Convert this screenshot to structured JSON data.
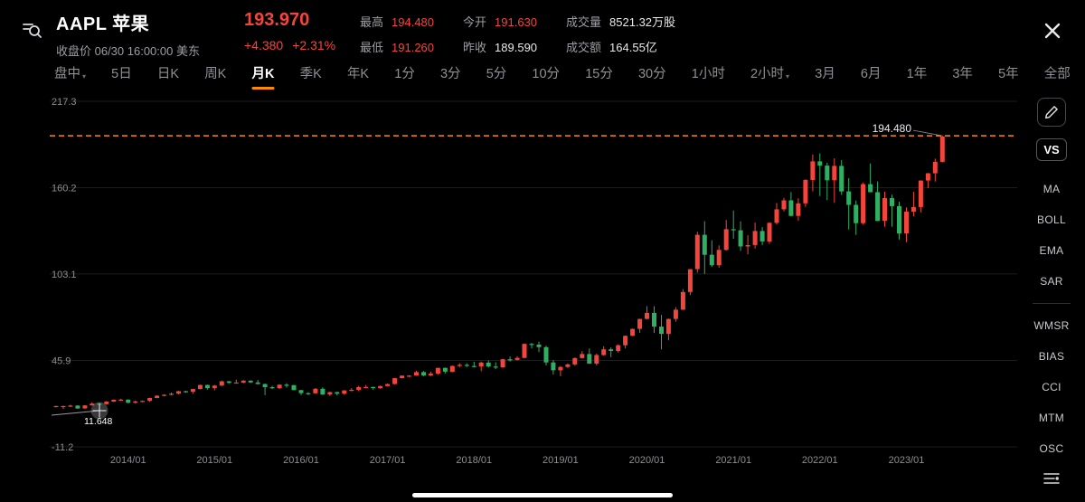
{
  "colors": {
    "red": "#f4453c",
    "green": "#2eaf64",
    "orange": "#ff8a00"
  },
  "header": {
    "symbol_title": "AAPL 苹果",
    "subtitle": "收盘价 06/30 16:00:00 美东",
    "price": "193.970",
    "change_abs": "+4.380",
    "change_pct": "+2.31%",
    "stats": [
      {
        "label": "最高",
        "value": "194.480",
        "c": "red"
      },
      {
        "label": "今开",
        "value": "191.630",
        "c": "red"
      },
      {
        "label": "成交量",
        "value": "8521.32万股",
        "c": "white"
      },
      {
        "label": "最低",
        "value": "191.260",
        "c": "red"
      },
      {
        "label": "昨收",
        "value": "189.590",
        "c": "white"
      },
      {
        "label": "成交额",
        "value": "164.55亿",
        "c": "white"
      }
    ]
  },
  "tabs": [
    {
      "label": "盘中",
      "caret": true
    },
    {
      "label": "5日"
    },
    {
      "label": "日K"
    },
    {
      "label": "周K"
    },
    {
      "label": "月K",
      "active": true
    },
    {
      "label": "季K"
    },
    {
      "label": "年K"
    },
    {
      "label": "1分"
    },
    {
      "label": "3分"
    },
    {
      "label": "5分"
    },
    {
      "label": "10分"
    },
    {
      "label": "15分"
    },
    {
      "label": "30分"
    },
    {
      "label": "1小时"
    },
    {
      "label": "2小时",
      "caret": true
    },
    {
      "label": "3月"
    },
    {
      "label": "6月"
    },
    {
      "label": "1年"
    },
    {
      "label": "3年"
    },
    {
      "label": "5年"
    },
    {
      "label": "全部"
    }
  ],
  "sidebar": {
    "vs_label": "VS",
    "groups": [
      [
        "MA",
        "BOLL",
        "EMA",
        "SAR"
      ],
      [
        "WMSR",
        "BIAS",
        "CCI",
        "MTM",
        "OSC"
      ]
    ]
  },
  "chart_data": {
    "type": "candlestick",
    "title": "AAPL 苹果 月K线",
    "ylim": [
      -11.2,
      217.3
    ],
    "y_ticks": [
      217.3,
      160.2,
      103.1,
      45.9,
      -11.2
    ],
    "start_month": "2013/03",
    "x_labels": [
      {
        "text": "2014/01",
        "i": 10
      },
      {
        "text": "2015/01",
        "i": 22
      },
      {
        "text": "2016/01",
        "i": 34
      },
      {
        "text": "2017/01",
        "i": 46
      },
      {
        "text": "2018/01",
        "i": 58
      },
      {
        "text": "2019/01",
        "i": 70
      },
      {
        "text": "2020/01",
        "i": 82
      },
      {
        "text": "2021/01",
        "i": 94
      },
      {
        "text": "2022/01",
        "i": 106
      },
      {
        "text": "2023/01",
        "i": 118
      }
    ],
    "high_line": {
      "value": 194.48,
      "label": "194.480"
    },
    "trend_anno": {
      "label": "11.648"
    },
    "colors": {
      "up": "#f4453c",
      "down": "#2eaf64",
      "grid": "#1d1d20",
      "axis_text": "#8e8e93",
      "dash": "#ff8a00"
    },
    "candles": [
      [
        15.4,
        16.0,
        14.9,
        15.8
      ],
      [
        15.8,
        16.0,
        13.8,
        15.8
      ],
      [
        15.8,
        16.6,
        15.2,
        16.1
      ],
      [
        16.1,
        16.3,
        13.9,
        14.2
      ],
      [
        14.2,
        16.4,
        13.9,
        16.2
      ],
      [
        16.2,
        18.2,
        16.0,
        17.4
      ],
      [
        17.4,
        18.0,
        16.8,
        17.0
      ],
      [
        17.0,
        19.0,
        16.7,
        18.7
      ],
      [
        18.7,
        20.2,
        18.4,
        19.9
      ],
      [
        19.9,
        20.6,
        19.2,
        20.0
      ],
      [
        20.0,
        20.2,
        17.6,
        17.9
      ],
      [
        17.9,
        19.3,
        17.4,
        18.8
      ],
      [
        18.8,
        19.5,
        18.3,
        19.2
      ],
      [
        19.2,
        21.3,
        18.6,
        21.1
      ],
      [
        21.1,
        22.9,
        20.9,
        22.6
      ],
      [
        22.6,
        23.6,
        22.2,
        23.2
      ],
      [
        23.2,
        24.7,
        22.9,
        23.9
      ],
      [
        23.9,
        25.8,
        23.5,
        25.6
      ],
      [
        25.6,
        25.9,
        24.6,
        25.2
      ],
      [
        25.2,
        27.2,
        23.9,
        27.0
      ],
      [
        27.0,
        29.9,
        26.8,
        29.7
      ],
      [
        29.7,
        29.9,
        26.6,
        27.6
      ],
      [
        27.6,
        29.8,
        26.2,
        29.3
      ],
      [
        29.3,
        32.6,
        29.0,
        32.1
      ],
      [
        32.1,
        32.4,
        30.5,
        31.1
      ],
      [
        31.1,
        33.3,
        30.8,
        31.3
      ],
      [
        31.3,
        32.9,
        30.8,
        32.6
      ],
      [
        32.6,
        32.7,
        31.0,
        31.4
      ],
      [
        31.4,
        33.0,
        30.2,
        30.3
      ],
      [
        30.3,
        30.7,
        23.0,
        28.2
      ],
      [
        28.2,
        29.2,
        27.0,
        27.6
      ],
      [
        27.6,
        30.2,
        27.0,
        29.9
      ],
      [
        29.9,
        30.9,
        28.0,
        29.6
      ],
      [
        29.6,
        29.8,
        26.2,
        26.3
      ],
      [
        26.3,
        26.4,
        23.1,
        24.3
      ],
      [
        24.3,
        24.9,
        23.1,
        24.2
      ],
      [
        24.2,
        27.6,
        24.0,
        27.2
      ],
      [
        27.2,
        28.1,
        23.1,
        23.4
      ],
      [
        23.4,
        25.2,
        22.4,
        25.0
      ],
      [
        25.0,
        25.2,
        22.9,
        23.9
      ],
      [
        23.9,
        26.2,
        23.2,
        26.1
      ],
      [
        26.1,
        27.6,
        25.6,
        26.5
      ],
      [
        26.5,
        29.1,
        25.6,
        28.3
      ],
      [
        28.3,
        29.7,
        27.9,
        28.4
      ],
      [
        28.4,
        28.6,
        26.6,
        27.6
      ],
      [
        27.6,
        29.3,
        27.2,
        29.0
      ],
      [
        29.0,
        30.6,
        28.7,
        30.3
      ],
      [
        30.3,
        34.4,
        30.2,
        34.2
      ],
      [
        34.2,
        36.0,
        34.0,
        35.9
      ],
      [
        35.9,
        36.1,
        35.0,
        35.9
      ],
      [
        35.9,
        39.1,
        35.8,
        38.2
      ],
      [
        38.2,
        38.9,
        35.5,
        36.0
      ],
      [
        36.0,
        38.5,
        35.6,
        37.2
      ],
      [
        37.2,
        41.1,
        36.5,
        41.0
      ],
      [
        41.0,
        41.2,
        37.3,
        38.5
      ],
      [
        38.5,
        42.5,
        38.1,
        42.3
      ],
      [
        42.3,
        44.1,
        41.6,
        43.0
      ],
      [
        43.0,
        44.0,
        41.6,
        42.3
      ],
      [
        42.3,
        45.0,
        41.2,
        41.9
      ],
      [
        41.9,
        45.2,
        38.8,
        44.5
      ],
      [
        44.5,
        45.9,
        41.2,
        41.9
      ],
      [
        41.9,
        44.7,
        40.2,
        41.3
      ],
      [
        41.3,
        47.1,
        41.1,
        46.7
      ],
      [
        46.7,
        48.5,
        45.2,
        46.3
      ],
      [
        46.3,
        48.7,
        45.9,
        47.6
      ],
      [
        47.6,
        57.2,
        47.5,
        56.9
      ],
      [
        56.9,
        57.4,
        53.8,
        56.4
      ],
      [
        56.4,
        58.4,
        51.5,
        54.7
      ],
      [
        54.7,
        55.6,
        42.6,
        44.6
      ],
      [
        44.6,
        46.2,
        36.6,
        39.4
      ],
      [
        39.4,
        42.2,
        35.5,
        41.6
      ],
      [
        41.6,
        43.9,
        41.0,
        43.3
      ],
      [
        43.3,
        47.9,
        42.4,
        47.5
      ],
      [
        47.5,
        52.1,
        47.1,
        50.2
      ],
      [
        50.2,
        53.8,
        43.7,
        43.8
      ],
      [
        43.8,
        50.4,
        42.6,
        49.5
      ],
      [
        49.5,
        55.3,
        49.3,
        53.3
      ],
      [
        53.3,
        54.5,
        48.1,
        52.2
      ],
      [
        52.2,
        56.6,
        51.1,
        56.0
      ],
      [
        56.0,
        62.4,
        53.8,
        62.2
      ],
      [
        62.2,
        67.0,
        62.0,
        66.8
      ],
      [
        66.8,
        73.5,
        64.1,
        73.4
      ],
      [
        73.4,
        81.8,
        73.2,
        77.4
      ],
      [
        77.4,
        81.8,
        64.1,
        68.3
      ],
      [
        68.3,
        76.0,
        53.2,
        63.6
      ],
      [
        63.6,
        73.6,
        59.2,
        73.4
      ],
      [
        73.4,
        81.1,
        71.5,
        79.5
      ],
      [
        79.5,
        93.1,
        79.3,
        91.2
      ],
      [
        91.2,
        106.4,
        89.1,
        106.3
      ],
      [
        106.3,
        131.0,
        104.0,
        129.0
      ],
      [
        129.0,
        138.0,
        103.1,
        115.8
      ],
      [
        115.8,
        125.4,
        107.7,
        108.9
      ],
      [
        108.9,
        122.0,
        107.3,
        119.0
      ],
      [
        119.0,
        138.8,
        118.6,
        132.7
      ],
      [
        132.7,
        145.1,
        126.4,
        132.0
      ],
      [
        132.0,
        137.9,
        118.4,
        121.3
      ],
      [
        121.3,
        128.7,
        116.2,
        122.2
      ],
      [
        122.2,
        137.1,
        119.9,
        131.5
      ],
      [
        131.5,
        134.1,
        122.2,
        124.6
      ],
      [
        124.6,
        137.4,
        123.1,
        136.9
      ],
      [
        136.9,
        150.0,
        135.8,
        145.9
      ],
      [
        145.9,
        153.5,
        144.5,
        151.8
      ],
      [
        151.8,
        157.3,
        141.3,
        141.5
      ],
      [
        141.5,
        153.2,
        138.3,
        149.8
      ],
      [
        149.8,
        165.7,
        147.5,
        165.3
      ],
      [
        165.3,
        182.1,
        157.8,
        177.6
      ],
      [
        177.6,
        182.9,
        154.7,
        174.8
      ],
      [
        174.8,
        176.6,
        152.0,
        165.1
      ],
      [
        165.1,
        179.6,
        150.1,
        174.6
      ],
      [
        174.6,
        178.5,
        155.4,
        157.7
      ],
      [
        157.7,
        166.5,
        132.6,
        148.8
      ],
      [
        148.8,
        151.7,
        129.0,
        136.7
      ],
      [
        136.7,
        163.6,
        135.7,
        162.5
      ],
      [
        162.5,
        176.2,
        157.1,
        157.2
      ],
      [
        157.2,
        164.3,
        138.0,
        138.2
      ],
      [
        138.2,
        157.5,
        134.4,
        153.3
      ],
      [
        153.3,
        155.5,
        134.4,
        148.0
      ],
      [
        148.0,
        150.9,
        125.9,
        129.9
      ],
      [
        129.9,
        147.2,
        124.2,
        144.3
      ],
      [
        144.3,
        157.4,
        141.3,
        147.4
      ],
      [
        147.4,
        165.0,
        143.9,
        164.9
      ],
      [
        164.9,
        169.9,
        159.8,
        169.7
      ],
      [
        169.7,
        179.4,
        164.3,
        177.3
      ],
      [
        177.3,
        194.48,
        176.9,
        193.97
      ]
    ]
  }
}
